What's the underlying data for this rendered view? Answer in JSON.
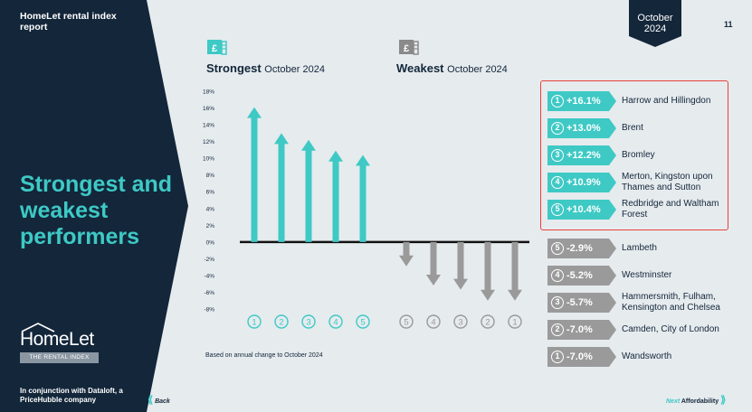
{
  "header": {
    "report_title": "HomeLet rental index report",
    "date_badge": "October 2024",
    "page_number": "11"
  },
  "sidebar": {
    "hero_title": "Strongest and weakest performers",
    "logo_text": "HomeLet",
    "logo_subtitle": "THE RENTAL INDEX",
    "footer": "In conjunction with Dataloft, a PriceHubble company"
  },
  "nav": {
    "back_label": "Back",
    "next_label": "Next",
    "next_target": "Affordability"
  },
  "columns": {
    "strongest_title": "Strongest",
    "strongest_sub": "October 2024",
    "weakest_title": "Weakest",
    "weakest_sub": "October 2024"
  },
  "footnote": "Based on annual change to October 2024",
  "colors": {
    "navy": "#13263a",
    "teal": "#3ec9c5",
    "grey": "#9a9a9a",
    "highlight": "#e8413b"
  },
  "chart_data": {
    "type": "bar",
    "ylim": [
      -8,
      18
    ],
    "yticks": [
      "18%",
      "16%",
      "14%",
      "12%",
      "10%",
      "8%",
      "6%",
      "4%",
      "2%",
      "0%",
      "-2%",
      "-4%",
      "-6%",
      "-8%"
    ],
    "series": [
      {
        "name": "Strongest",
        "categories": [
          "1",
          "2",
          "3",
          "4",
          "5"
        ],
        "values": [
          16.1,
          13.0,
          12.2,
          10.9,
          10.4
        ]
      },
      {
        "name": "Weakest",
        "categories": [
          "5",
          "4",
          "3",
          "2",
          "1"
        ],
        "values": [
          -2.9,
          -5.2,
          -5.7,
          -7.0,
          -7.0
        ]
      }
    ]
  },
  "strongest": [
    {
      "rank": "1",
      "value": "+16.1%",
      "name": "Harrow and Hillingdon"
    },
    {
      "rank": "2",
      "value": "+13.0%",
      "name": "Brent"
    },
    {
      "rank": "3",
      "value": "+12.2%",
      "name": "Bromley"
    },
    {
      "rank": "4",
      "value": "+10.9%",
      "name": "Merton, Kingston upon Thames and Sutton"
    },
    {
      "rank": "5",
      "value": "+10.4%",
      "name": "Redbridge and Waltham Forest"
    }
  ],
  "weakest": [
    {
      "rank": "5",
      "value": "-2.9%",
      "name": "Lambeth"
    },
    {
      "rank": "4",
      "value": "-5.2%",
      "name": "Westminster"
    },
    {
      "rank": "3",
      "value": "-5.7%",
      "name": "Hammersmith, Fulham, Kensington and Chelsea"
    },
    {
      "rank": "2",
      "value": "-7.0%",
      "name": "Camden, City of London"
    },
    {
      "rank": "1",
      "value": "-7.0%",
      "name": "Wandsworth"
    }
  ]
}
